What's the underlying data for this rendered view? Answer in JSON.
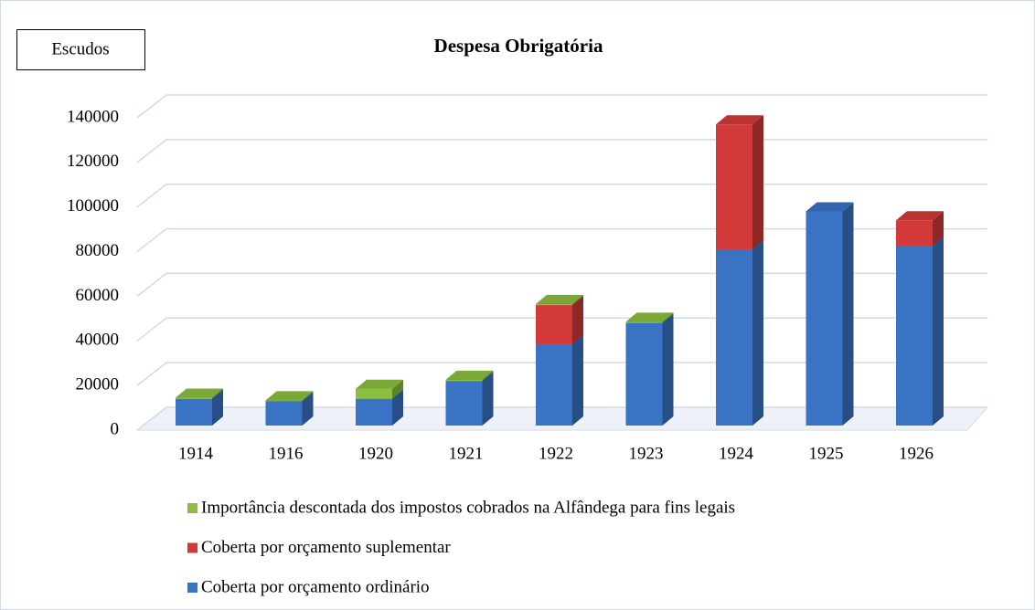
{
  "chart_data": {
    "type": "bar3d_stacked",
    "title": "Despesa Obrigatória",
    "y_label": "Escudos",
    "categories": [
      "1914",
      "1916",
      "1920",
      "1921",
      "1922",
      "1923",
      "1924",
      "1925",
      "1926"
    ],
    "series": [
      {
        "name": "Coberta por orçamento ordinário",
        "color": "#3a73c4",
        "values": [
          12000,
          11000,
          12000,
          20000,
          36500,
          46000,
          79000,
          96000,
          80500
        ]
      },
      {
        "name": "Coberta por orçamento suplementar",
        "color": "#d23a3a",
        "values": [
          0,
          0,
          0,
          0,
          17500,
          0,
          56000,
          0,
          11500
        ]
      },
      {
        "name": "Importância descontada dos impostos cobrados na Alfândega para fins legais",
        "color": "#8cbf3f",
        "values": [
          500,
          300,
          4500,
          500,
          500,
          500,
          0,
          0,
          0
        ]
      }
    ],
    "ylim": [
      0,
      140000
    ],
    "yticks": [
      0,
      20000,
      40000,
      60000,
      80000,
      100000,
      120000,
      140000
    ],
    "grid": true
  }
}
